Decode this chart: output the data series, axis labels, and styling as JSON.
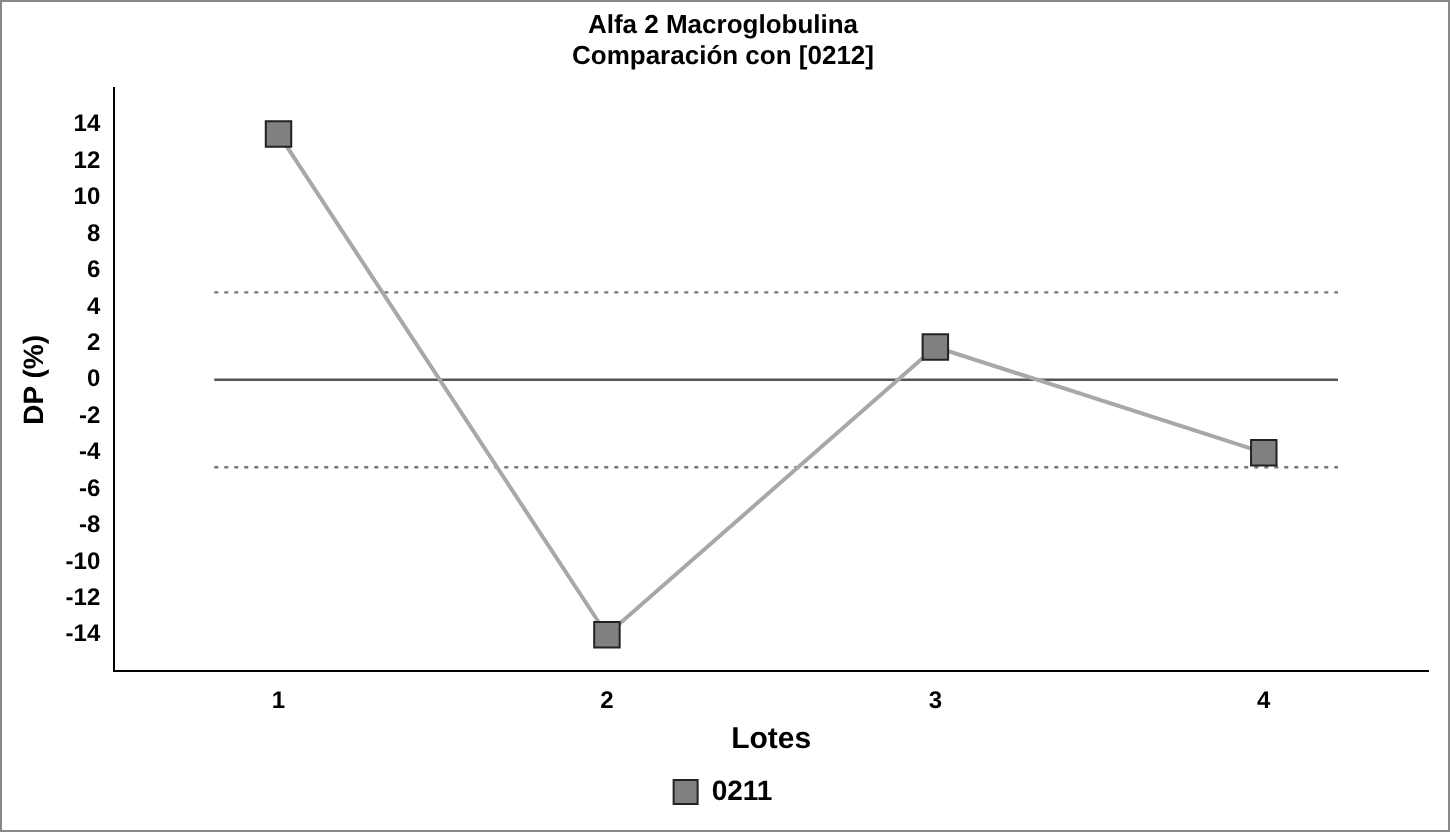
{
  "chart_data": {
    "type": "line",
    "title": "Alfa 2 Macroglobulina",
    "subtitle": "Comparación con [0212]",
    "xlabel": "Lotes",
    "ylabel": "DP (%)",
    "categories": [
      "1",
      "2",
      "3",
      "4"
    ],
    "series": [
      {
        "name": "0211",
        "color": "#808080",
        "values": [
          13.5,
          -14,
          1.8,
          -4
        ]
      }
    ],
    "ylim": [
      -16,
      16
    ],
    "yticks": [
      -14,
      -12,
      -10,
      -8,
      -6,
      -4,
      -2,
      0,
      2,
      4,
      6,
      8,
      10,
      12,
      14
    ],
    "ref_lines": [
      {
        "axis": "y",
        "value": 0,
        "color": "#555555",
        "line_style": "solid"
      },
      {
        "axis": "y",
        "value": 4.8,
        "color": "#777777",
        "line_style": "dotted"
      },
      {
        "axis": "y",
        "value": -4.8,
        "color": "#777777",
        "line_style": "dotted"
      }
    ],
    "marker": "square",
    "line_style": "solid",
    "grid": false,
    "legend": "bottom"
  }
}
